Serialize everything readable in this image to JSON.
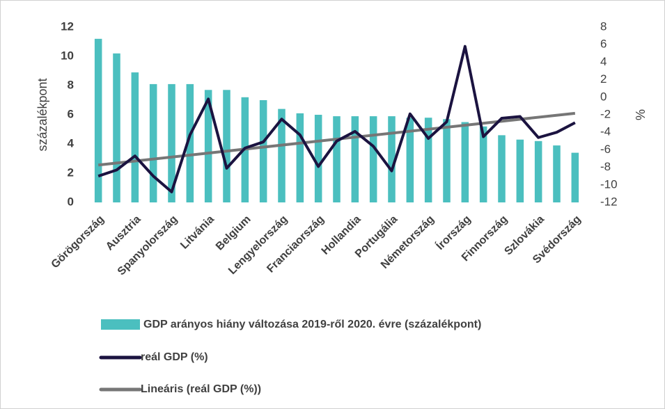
{
  "chart_data": {
    "type": "bar-line",
    "categories": [
      "Görögország",
      null,
      "Ausztria",
      null,
      "Spanyolország",
      null,
      "Litvánia",
      null,
      "Belgium",
      null,
      "Lengyelország",
      null,
      "Franciaország",
      null,
      "Hollandia",
      null,
      "Portugália",
      null,
      "Németország",
      null,
      "Írország",
      null,
      "Finnország",
      null,
      "Szlovákia",
      null,
      "Svédország"
    ],
    "series": [
      {
        "name": "GDP arányos hiány változása 2019-ről 2020. évre (százalékpont)",
        "type": "bar",
        "color": "#4bbfbf",
        "axis": "y",
        "values": [
          11.2,
          10.2,
          8.9,
          8.1,
          8.1,
          8.1,
          7.7,
          7.7,
          7.2,
          7.0,
          6.4,
          6.1,
          6.0,
          5.9,
          5.9,
          5.9,
          5.9,
          5.8,
          5.8,
          5.7,
          5.5,
          5.2,
          4.6,
          4.3,
          4.2,
          3.9,
          3.4
        ]
      },
      {
        "name": "reál GDP (%)",
        "type": "line",
        "color": "#1b1340",
        "axis": "y2",
        "values": [
          -9.0,
          -8.3,
          -6.7,
          -9.0,
          -10.8,
          -4.3,
          -0.2,
          -8.1,
          -5.8,
          -5.1,
          -2.5,
          -4.3,
          -7.9,
          -5.0,
          -3.9,
          -5.6,
          -8.4,
          -1.9,
          -4.7,
          -2.8,
          5.8,
          -4.5,
          -2.4,
          -2.2,
          -4.6,
          -4.0,
          -2.9
        ]
      }
    ],
    "trendline": {
      "name": "Lineáris (reál GDP (%))",
      "color": "#767676",
      "series": 1
    },
    "ylabel": "százalékpont",
    "y2label": "%",
    "ylim": [
      0,
      12
    ],
    "yticks": [
      0,
      2,
      4,
      6,
      8,
      10,
      12
    ],
    "y2lim": [
      -12,
      8
    ],
    "y2ticks": [
      -12,
      -10,
      -8,
      -6,
      -4,
      -2,
      0,
      2,
      4,
      6,
      8
    ],
    "grid": false,
    "legend": "bottom"
  }
}
